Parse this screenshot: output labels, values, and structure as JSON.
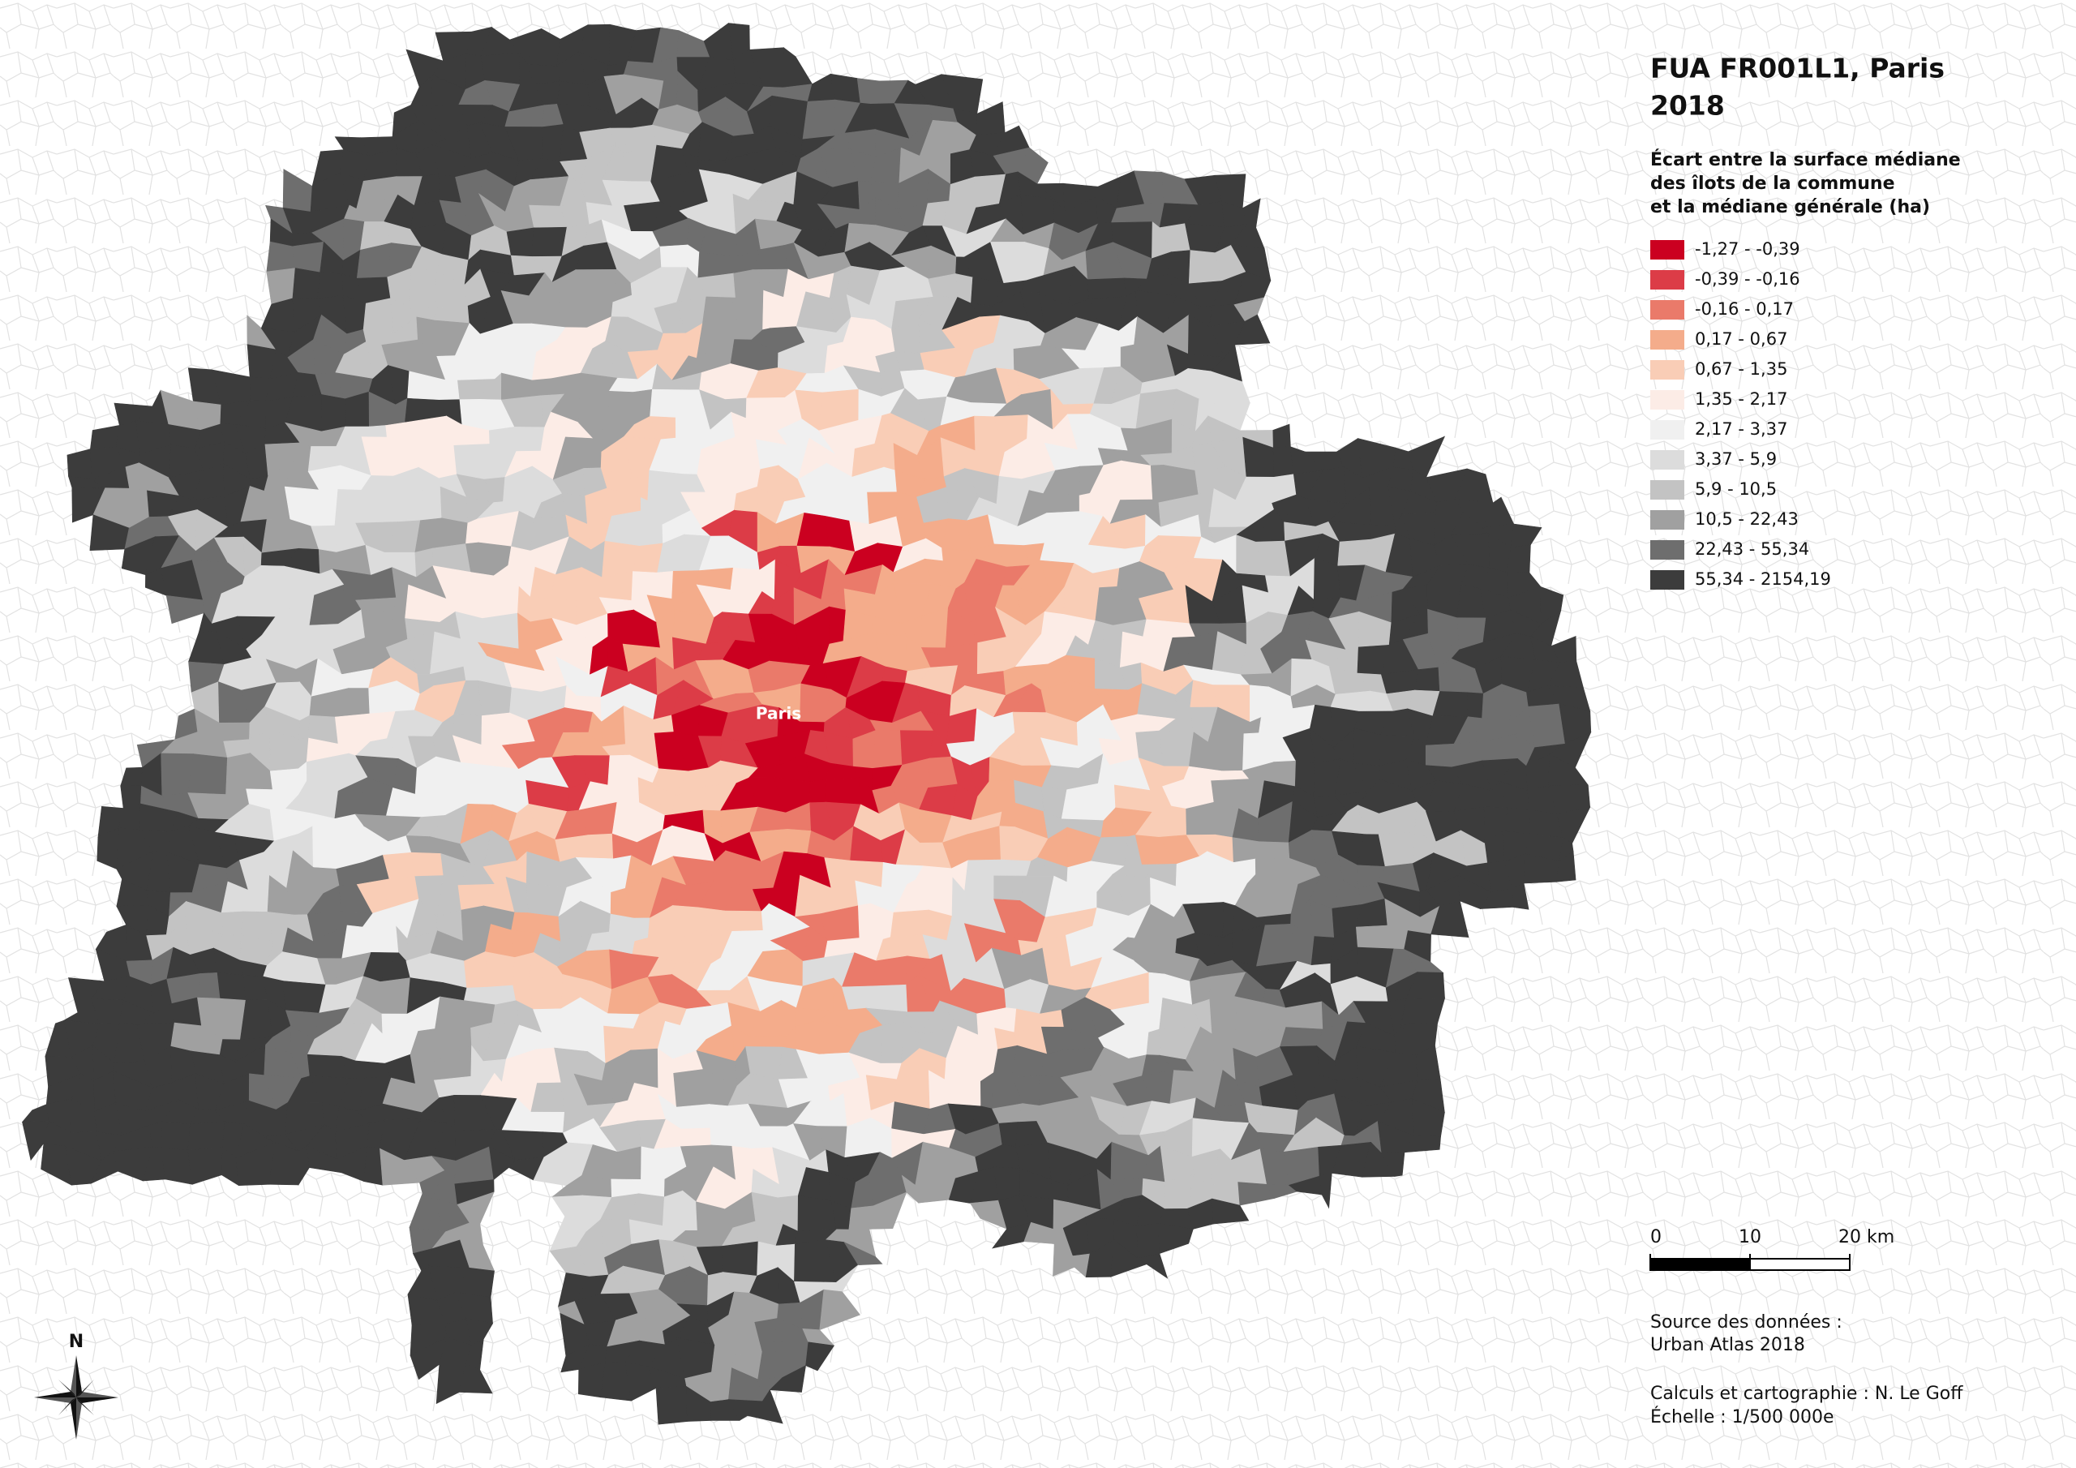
{
  "title": [
    "FUA FR001L1, Paris",
    "2018"
  ],
  "legend": {
    "title": [
      "Écart entre la surface médiane",
      "des îlots de la commune",
      "et la médiane générale (ha)"
    ],
    "classes": [
      {
        "label": "-1,27 - -0,39",
        "color": "#cb0020"
      },
      {
        "label": "-0,39 - -0,16",
        "color": "#dc3c47"
      },
      {
        "label": "-0,16 - 0,17",
        "color": "#ea7a6a"
      },
      {
        "label": "0,17 - 0,67",
        "color": "#f4ac8b"
      },
      {
        "label": "0,67 - 1,35",
        "color": "#f9cdb6"
      },
      {
        "label": "1,35 - 2,17",
        "color": "#fcece6"
      },
      {
        "label": "2,17 - 3,37",
        "color": "#f0f0f0"
      },
      {
        "label": "3,37 - 5,9",
        "color": "#dcdcdc"
      },
      {
        "label": "5,9 - 10,5",
        "color": "#c3c3c3"
      },
      {
        "label": "10,5 - 22,43",
        "color": "#a0a0a0"
      },
      {
        "label": "22,43 - 55,34",
        "color": "#6e6e6e"
      },
      {
        "label": "55,34 - 2154,19",
        "color": "#3c3c3c"
      }
    ]
  },
  "place_label": "Paris",
  "north": "N",
  "scale_bar": {
    "ticks": [
      0,
      10,
      {
        "value": 20,
        "label": "20 km"
      }
    ]
  },
  "source": [
    "Source des données :",
    "Urban Atlas 2018"
  ],
  "credits": [
    "Calculs et cartographie : N. Le Goff",
    "Échelle : 1/500 000e"
  ]
}
